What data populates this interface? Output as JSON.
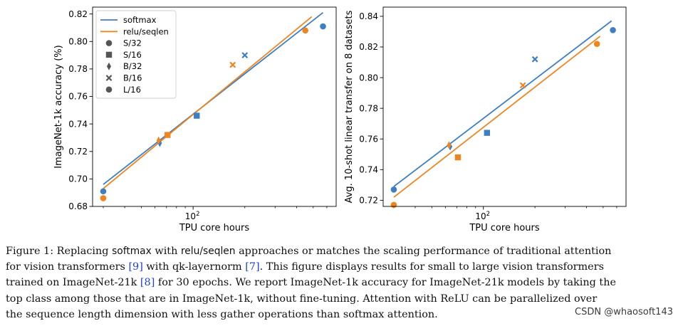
{
  "colors": {
    "softmax": "#3d7fc2",
    "relu": "#f0851f",
    "legend_marker": "#555555"
  },
  "legend": {
    "lines": [
      "softmax",
      "relu/seqlen"
    ],
    "markers": [
      {
        "label": "S/32",
        "marker": "circle"
      },
      {
        "label": "S/16",
        "marker": "square"
      },
      {
        "label": "B/32",
        "marker": "diamond"
      },
      {
        "label": "B/16",
        "marker": "x"
      },
      {
        "label": "L/16",
        "marker": "circle"
      }
    ]
  },
  "chart_data": [
    {
      "type": "scatter",
      "xscale": "log",
      "xlabel": "TPU core hours",
      "ylabel": "ImageNet-1k accuracy (%)",
      "xtick_labels": [
        "10",
        "2"
      ],
      "ylim": [
        0.68,
        0.825
      ],
      "yticks": [
        "0.68",
        "0.70",
        "0.72",
        "0.74",
        "0.76",
        "0.78",
        "0.80",
        "0.82"
      ],
      "series": [
        {
          "name": "softmax",
          "points": [
            {
              "x": 30,
              "y": 0.691,
              "model": "S/32"
            },
            {
              "x": 64,
              "y": 0.726,
              "model": "B/32"
            },
            {
              "x": 105,
              "y": 0.746,
              "model": "S/16"
            },
            {
              "x": 200,
              "y": 0.79,
              "model": "B/16"
            },
            {
              "x": 570,
              "y": 0.811,
              "model": "L/16"
            }
          ],
          "fit": [
            [
              30,
              0.696
            ],
            [
              570,
              0.821
            ]
          ]
        },
        {
          "name": "relu/seqlen",
          "points": [
            {
              "x": 30,
              "y": 0.686,
              "model": "S/32"
            },
            {
              "x": 63,
              "y": 0.728,
              "model": "B/32"
            },
            {
              "x": 71,
              "y": 0.732,
              "model": "S/16"
            },
            {
              "x": 170,
              "y": 0.783,
              "model": "B/16"
            },
            {
              "x": 450,
              "y": 0.808,
              "model": "L/16"
            }
          ],
          "fit": [
            [
              30,
              0.693
            ],
            [
              490,
              0.818
            ]
          ]
        }
      ]
    },
    {
      "type": "scatter",
      "xscale": "log",
      "xlabel": "TPU core hours",
      "ylabel": "Avg. 10-shot linear transfer on 8 datasets",
      "xtick_labels": [
        "10",
        "2"
      ],
      "ylim": [
        0.716,
        0.846
      ],
      "yticks": [
        "0.72",
        "0.74",
        "0.76",
        "0.78",
        "0.80",
        "0.82",
        "0.84"
      ],
      "series": [
        {
          "name": "softmax",
          "points": [
            {
              "x": 30,
              "y": 0.727,
              "model": "S/32"
            },
            {
              "x": 64,
              "y": 0.755,
              "model": "B/32"
            },
            {
              "x": 105,
              "y": 0.764,
              "model": "S/16"
            },
            {
              "x": 200,
              "y": 0.812,
              "model": "B/16"
            },
            {
              "x": 570,
              "y": 0.831,
              "model": "L/16"
            }
          ],
          "fit": [
            [
              30,
              0.729
            ],
            [
              560,
              0.837
            ]
          ]
        },
        {
          "name": "relu/seqlen",
          "points": [
            {
              "x": 30,
              "y": 0.717,
              "model": "S/32"
            },
            {
              "x": 63,
              "y": 0.756,
              "model": "B/32"
            },
            {
              "x": 71,
              "y": 0.748,
              "model": "S/16"
            },
            {
              "x": 170,
              "y": 0.795,
              "model": "B/16"
            },
            {
              "x": 460,
              "y": 0.822,
              "model": "L/16"
            }
          ],
          "fit": [
            [
              30,
              0.722
            ],
            [
              480,
              0.827
            ]
          ]
        }
      ]
    }
  ],
  "caption": {
    "figure_label": "Figure 1:",
    "t1": " Replacing ",
    "softmax": "softmax",
    "t2": " with ",
    "relu": "relu/seqlen",
    "t3": " approaches or matches the scaling performance of traditional attention",
    "t4": "for vision transformers ",
    "ref9": "[9]",
    "t5": " with qk-layernorm ",
    "ref7": "[7]",
    "t6": ". This figure displays results for small to large vision transformers",
    "t7": "trained on ImageNet-21k ",
    "ref8": "[8]",
    "t8": " for 30 epochs. We report ImageNet-1k accuracy for ImageNet-21k models by taking the",
    "t9": "top class among those that are in ImageNet-1k, without fine-tuning. Attention with ReLU can be parallelized over",
    "t10": "the sequence length dimension with less gather operations than softmax attention."
  },
  "watermark": "CSDN @whaosoft143"
}
